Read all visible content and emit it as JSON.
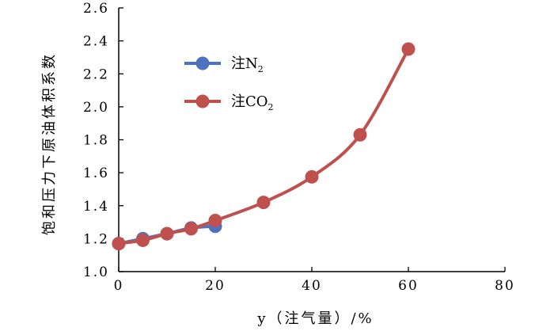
{
  "chart_data": {
    "type": "line",
    "xlabel": "y（注气量）/%",
    "ylabel": "饱和压力下原油体积系数",
    "xlim": [
      0,
      80
    ],
    "ylim": [
      1.0,
      2.6
    ],
    "x_ticks": [
      "0",
      "20",
      "40",
      "60",
      "80"
    ],
    "y_ticks": [
      "1.0",
      "1.2",
      "1.4",
      "1.6",
      "1.8",
      "2.0",
      "2.2",
      "2.4",
      "2.6"
    ],
    "grid": false,
    "legend_position": "top-left",
    "series": [
      {
        "name": "注N2",
        "legend_main": "注N",
        "legend_sub": "2",
        "color": "#4f72be",
        "points": [
          [
            0,
            1.17
          ],
          [
            5,
            1.2
          ],
          [
            10,
            1.23
          ],
          [
            15,
            1.265
          ],
          [
            20,
            1.275
          ]
        ]
      },
      {
        "name": "注CO2",
        "legend_main": "注CO",
        "legend_sub": "2",
        "color": "#c0504d",
        "points": [
          [
            0,
            1.17
          ],
          [
            5,
            1.19
          ],
          [
            10,
            1.23
          ],
          [
            15,
            1.26
          ],
          [
            20,
            1.31
          ],
          [
            30,
            1.42
          ],
          [
            40,
            1.575
          ],
          [
            50,
            1.83
          ],
          [
            60,
            2.35
          ]
        ]
      }
    ]
  }
}
